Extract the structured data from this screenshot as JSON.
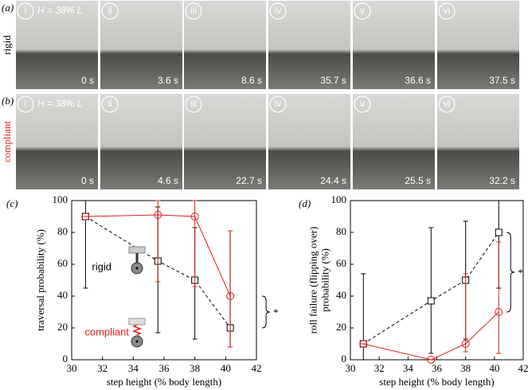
{
  "photos": {
    "rows": [
      {
        "label": "(a)",
        "name": "rigid",
        "height_note": "H = 38% L",
        "frames": [
          {
            "numeral": "i",
            "time": "0 s"
          },
          {
            "numeral": "ii",
            "time": "3.6 s"
          },
          {
            "numeral": "iii",
            "time": "8.6 s"
          },
          {
            "numeral": "iv",
            "time": "35.7 s"
          },
          {
            "numeral": "v",
            "time": "36.6 s"
          },
          {
            "numeral": "vi",
            "time": "37.5 s"
          }
        ]
      },
      {
        "label": "(b)",
        "name": "compliant",
        "height_note": "H = 38% L",
        "frames": [
          {
            "numeral": "i",
            "time": "0 s"
          },
          {
            "numeral": "ii",
            "time": "4.6 s"
          },
          {
            "numeral": "iii",
            "time": "22.7 s"
          },
          {
            "numeral": "iv",
            "time": "24.4 s"
          },
          {
            "numeral": "v",
            "time": "25.5 s"
          },
          {
            "numeral": "vi",
            "time": "32.2 s"
          }
        ]
      }
    ]
  },
  "chart_data": [
    {
      "type": "line",
      "panel_label": "(c)",
      "ylabel": [
        "traversal probability (%)"
      ],
      "xlabel": "step height (% body length)",
      "xlim": [
        30,
        42
      ],
      "xticks": [
        30,
        32,
        34,
        36,
        38,
        40,
        42
      ],
      "ylim": [
        0,
        100
      ],
      "yticks": [
        0,
        20,
        40,
        60,
        80,
        100
      ],
      "annotation": "*",
      "series": [
        {
          "name": "rigid",
          "color": "#000000",
          "dashed": true,
          "marker": "square",
          "x": [
            30.9,
            35.6,
            38,
            40.3
          ],
          "values": [
            90,
            62,
            50,
            20
          ],
          "lower": [
            45,
            17,
            13,
            8
          ],
          "upper": [
            100,
            96,
            83,
            81
          ]
        },
        {
          "name": "compliant",
          "color": "#e0201b",
          "dashed": false,
          "marker": "circle",
          "x": [
            30.9,
            35.6,
            38,
            40.3
          ],
          "values": [
            90,
            91,
            90,
            40
          ],
          "lower": [
            90,
            49,
            46,
            8
          ],
          "upper": [
            90,
            100,
            100,
            81
          ]
        }
      ]
    },
    {
      "type": "line",
      "panel_label": "(d)",
      "ylabel": [
        "roll failure (flipping over)",
        "probability (%)"
      ],
      "xlabel": "step height (% body length)",
      "xlim": [
        30,
        42
      ],
      "xticks": [
        30,
        32,
        34,
        36,
        38,
        40,
        42
      ],
      "ylim": [
        0,
        100
      ],
      "yticks": [
        0,
        20,
        40,
        60,
        80,
        100
      ],
      "annotation": "*",
      "series": [
        {
          "color": "#000000",
          "dashed": true,
          "marker": "square",
          "x": [
            30.9,
            35.6,
            38,
            40.3
          ],
          "values": [
            10,
            37,
            50,
            80
          ],
          "lower": [
            0,
            4,
            13,
            45
          ],
          "upper": [
            54,
            83,
            87,
            100
          ]
        },
        {
          "color": "#e0201b",
          "dashed": false,
          "marker": "circle",
          "x": [
            30.9,
            35.6,
            38,
            40.3
          ],
          "values": [
            10,
            0,
            10,
            30
          ],
          "lower": [
            10,
            0,
            5,
            4
          ],
          "upper": [
            10,
            0,
            54,
            74
          ]
        }
      ]
    }
  ]
}
